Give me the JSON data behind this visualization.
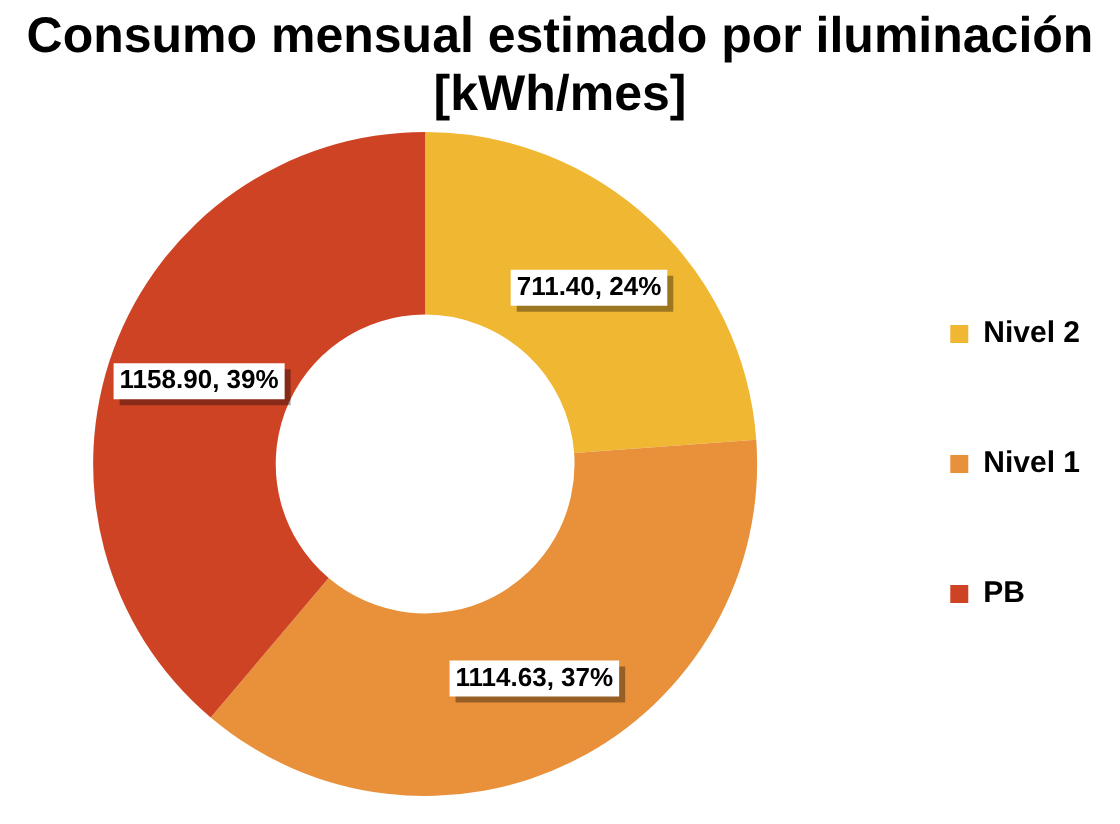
{
  "chart_data": {
    "type": "donut",
    "title": "Consumo mensual estimado por iluminación  [kWh/mes]",
    "categories": [
      "Nivel 2",
      "Nivel 1",
      "PB"
    ],
    "values": [
      711.4,
      1114.63,
      1158.9
    ],
    "colors": [
      "#f0b732",
      "#e8913a",
      "#cf4325"
    ],
    "value_labels": [
      "711.40, 24%",
      "1114.63, 37%",
      "1158.90, 39%"
    ],
    "legend": "right"
  }
}
